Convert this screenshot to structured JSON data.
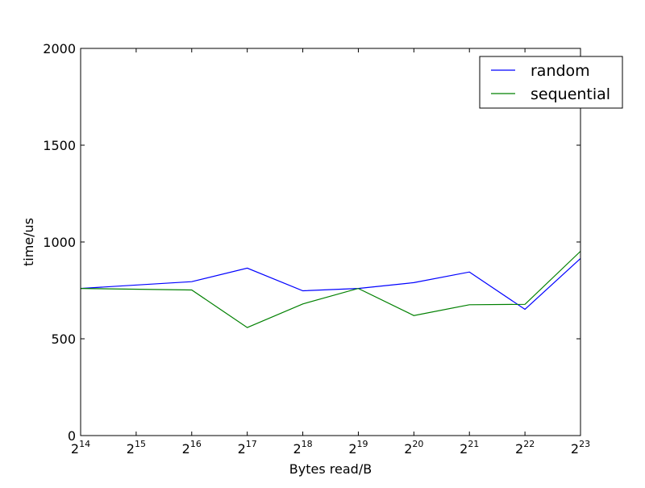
{
  "chart_data": {
    "type": "line",
    "x": [
      14,
      15,
      16,
      17,
      18,
      19,
      20,
      21,
      22,
      23
    ],
    "x_tick_base": "2",
    "x_tick_exponents": [
      "14",
      "15",
      "16",
      "17",
      "18",
      "19",
      "20",
      "21",
      "22",
      "23"
    ],
    "x_scale": "log2",
    "series": [
      {
        "name": "random",
        "color": "#0000ff",
        "x": [
          14,
          16,
          17,
          18,
          19,
          20,
          21,
          22,
          23
        ],
        "values": [
          760,
          795,
          865,
          748,
          760,
          790,
          845,
          652,
          915
        ]
      },
      {
        "name": "sequential",
        "color": "#008000",
        "x": [
          14,
          16,
          17,
          18,
          19,
          20,
          21,
          22,
          23
        ],
        "values": [
          760,
          752,
          558,
          680,
          760,
          620,
          676,
          678,
          952
        ]
      }
    ],
    "xlabel": "Bytes read/B",
    "ylabel": "time/us",
    "xlim": [
      14,
      23
    ],
    "ylim": [
      0,
      2000
    ],
    "y_ticks": [
      0,
      500,
      1000,
      1500,
      2000
    ],
    "y_tick_labels": [
      "0",
      "500",
      "1000",
      "1500",
      "2000"
    ],
    "grid": false,
    "legend_position": "top-right"
  }
}
